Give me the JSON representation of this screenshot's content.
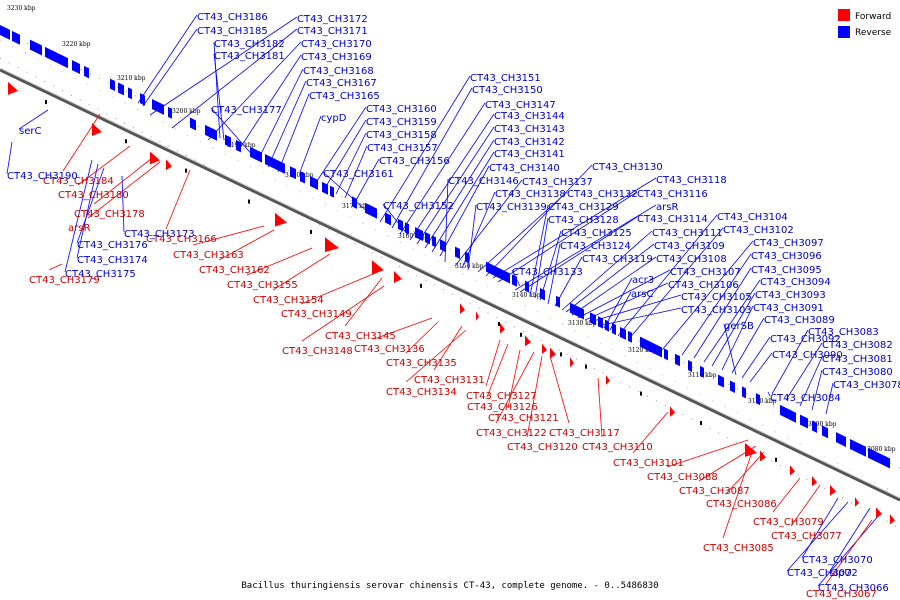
{
  "colors": {
    "forward": "#ff0000",
    "reverse": "#0000ff",
    "forward_label": "#cc0000",
    "reverse_label": "#0000cc",
    "backbone": "#555555",
    "tick": "#000000",
    "callout_forward": "#ff0000",
    "callout_reverse": "#0000ff"
  },
  "legend": {
    "forward": "Forward",
    "reverse": "Reverse"
  },
  "caption": "Bacillus thuringiensis serovar chinensis CT-43, complete genome. - 0..5486830",
  "axis_unit": "kbp",
  "ticks_kbp": [
    3230,
    3220,
    3210,
    3200,
    3190,
    3180,
    3170,
    3160,
    3150,
    3140,
    3130,
    3120,
    3110,
    3100,
    3090,
    3080
  ],
  "reverse_labels": [
    "CT43_CH3186",
    "CT43_CH3185",
    "CT43_CH3182",
    "CT43_CH3181",
    "CT43_CH3172",
    "CT43_CH3171",
    "CT43_CH3170",
    "CT43_CH3169",
    "CT43_CH3168",
    "CT43_CH3167",
    "CT43_CH3165",
    "CT43_CH3177",
    "cypD",
    "CT43_CH3151",
    "CT43_CH3150",
    "CT43_CH3147",
    "CT43_CH3144",
    "CT43_CH3143",
    "CT43_CH3142",
    "CT43_CH3141",
    "CT43_CH3140",
    "CT43_CH3160",
    "CT43_CH3159",
    "CT43_CH3158",
    "CT43_CH3157",
    "CT43_CH3156",
    "CT43_CH3161",
    "CT43_CH3146",
    "CT43_CH3137",
    "CT43_CH3138",
    "CT43_CH3132",
    "CT43_CH3130",
    "CT43_CH3118",
    "CT43_CH3116",
    "arsR",
    "CT43_CH3114",
    "CT43_CH3152",
    "CT43_CH3139",
    "CT43_CH3129",
    "CT43_CH3128",
    "CT43_CH3125",
    "CT43_CH3124",
    "CT43_CH3119",
    "CT43_CH3111",
    "CT43_CH3109",
    "CT43_CH3108",
    "CT43_CH3107",
    "CT43_CH3106",
    "CT43_CH3105",
    "CT43_CH3103",
    "acr3",
    "arsC",
    "CT43_CH3133",
    "serC",
    "CT43_CH3190",
    "CT43_CH3173",
    "CT43_CH3176",
    "CT43_CH3174",
    "CT43_CH3175",
    "CT43_CH3104",
    "CT43_CH3102",
    "CT43_CH3097",
    "CT43_CH3096",
    "CT43_CH3095",
    "CT43_CH3094",
    "CT43_CH3093",
    "CT43_CH3091",
    "CT43_CH3089",
    "gerSB",
    "CT43_CH3092",
    "CT43_CH3090",
    "CT43_CH3083",
    "CT43_CH3082",
    "CT43_CH3081",
    "CT43_CH3080",
    "CT43_CH3078",
    "CT43_CH3084",
    "CT43_CH3070",
    "CT43_CH3072",
    "sipU",
    "CT43_CH3066"
  ],
  "forward_labels": [
    "CT43_CH3184",
    "CT43_CH3180",
    "CT43_CH3178",
    "arsR",
    "CT43_CH3166",
    "CT43_CH3179",
    "CT43_CH3163",
    "CT43_CH3162",
    "CT43_CH3155",
    "CT43_CH3154",
    "CT43_CH3149",
    "CT43_CH3145",
    "CT43_CH3148",
    "CT43_CH3136",
    "CT43_CH3135",
    "CT43_CH3131",
    "CT43_CH3134",
    "CT43_CH3127",
    "CT43_CH3126",
    "CT43_CH3121",
    "CT43_CH3122",
    "CT43_CH3117",
    "CT43_CH3120",
    "CT43_CH3110",
    "CT43_CH3101",
    "CT43_CH3088",
    "CT43_CH3087",
    "CT43_CH3086",
    "CT43_CH3079",
    "CT43_CH3077",
    "CT43_CH3085",
    "CT43_CH3067"
  ]
}
